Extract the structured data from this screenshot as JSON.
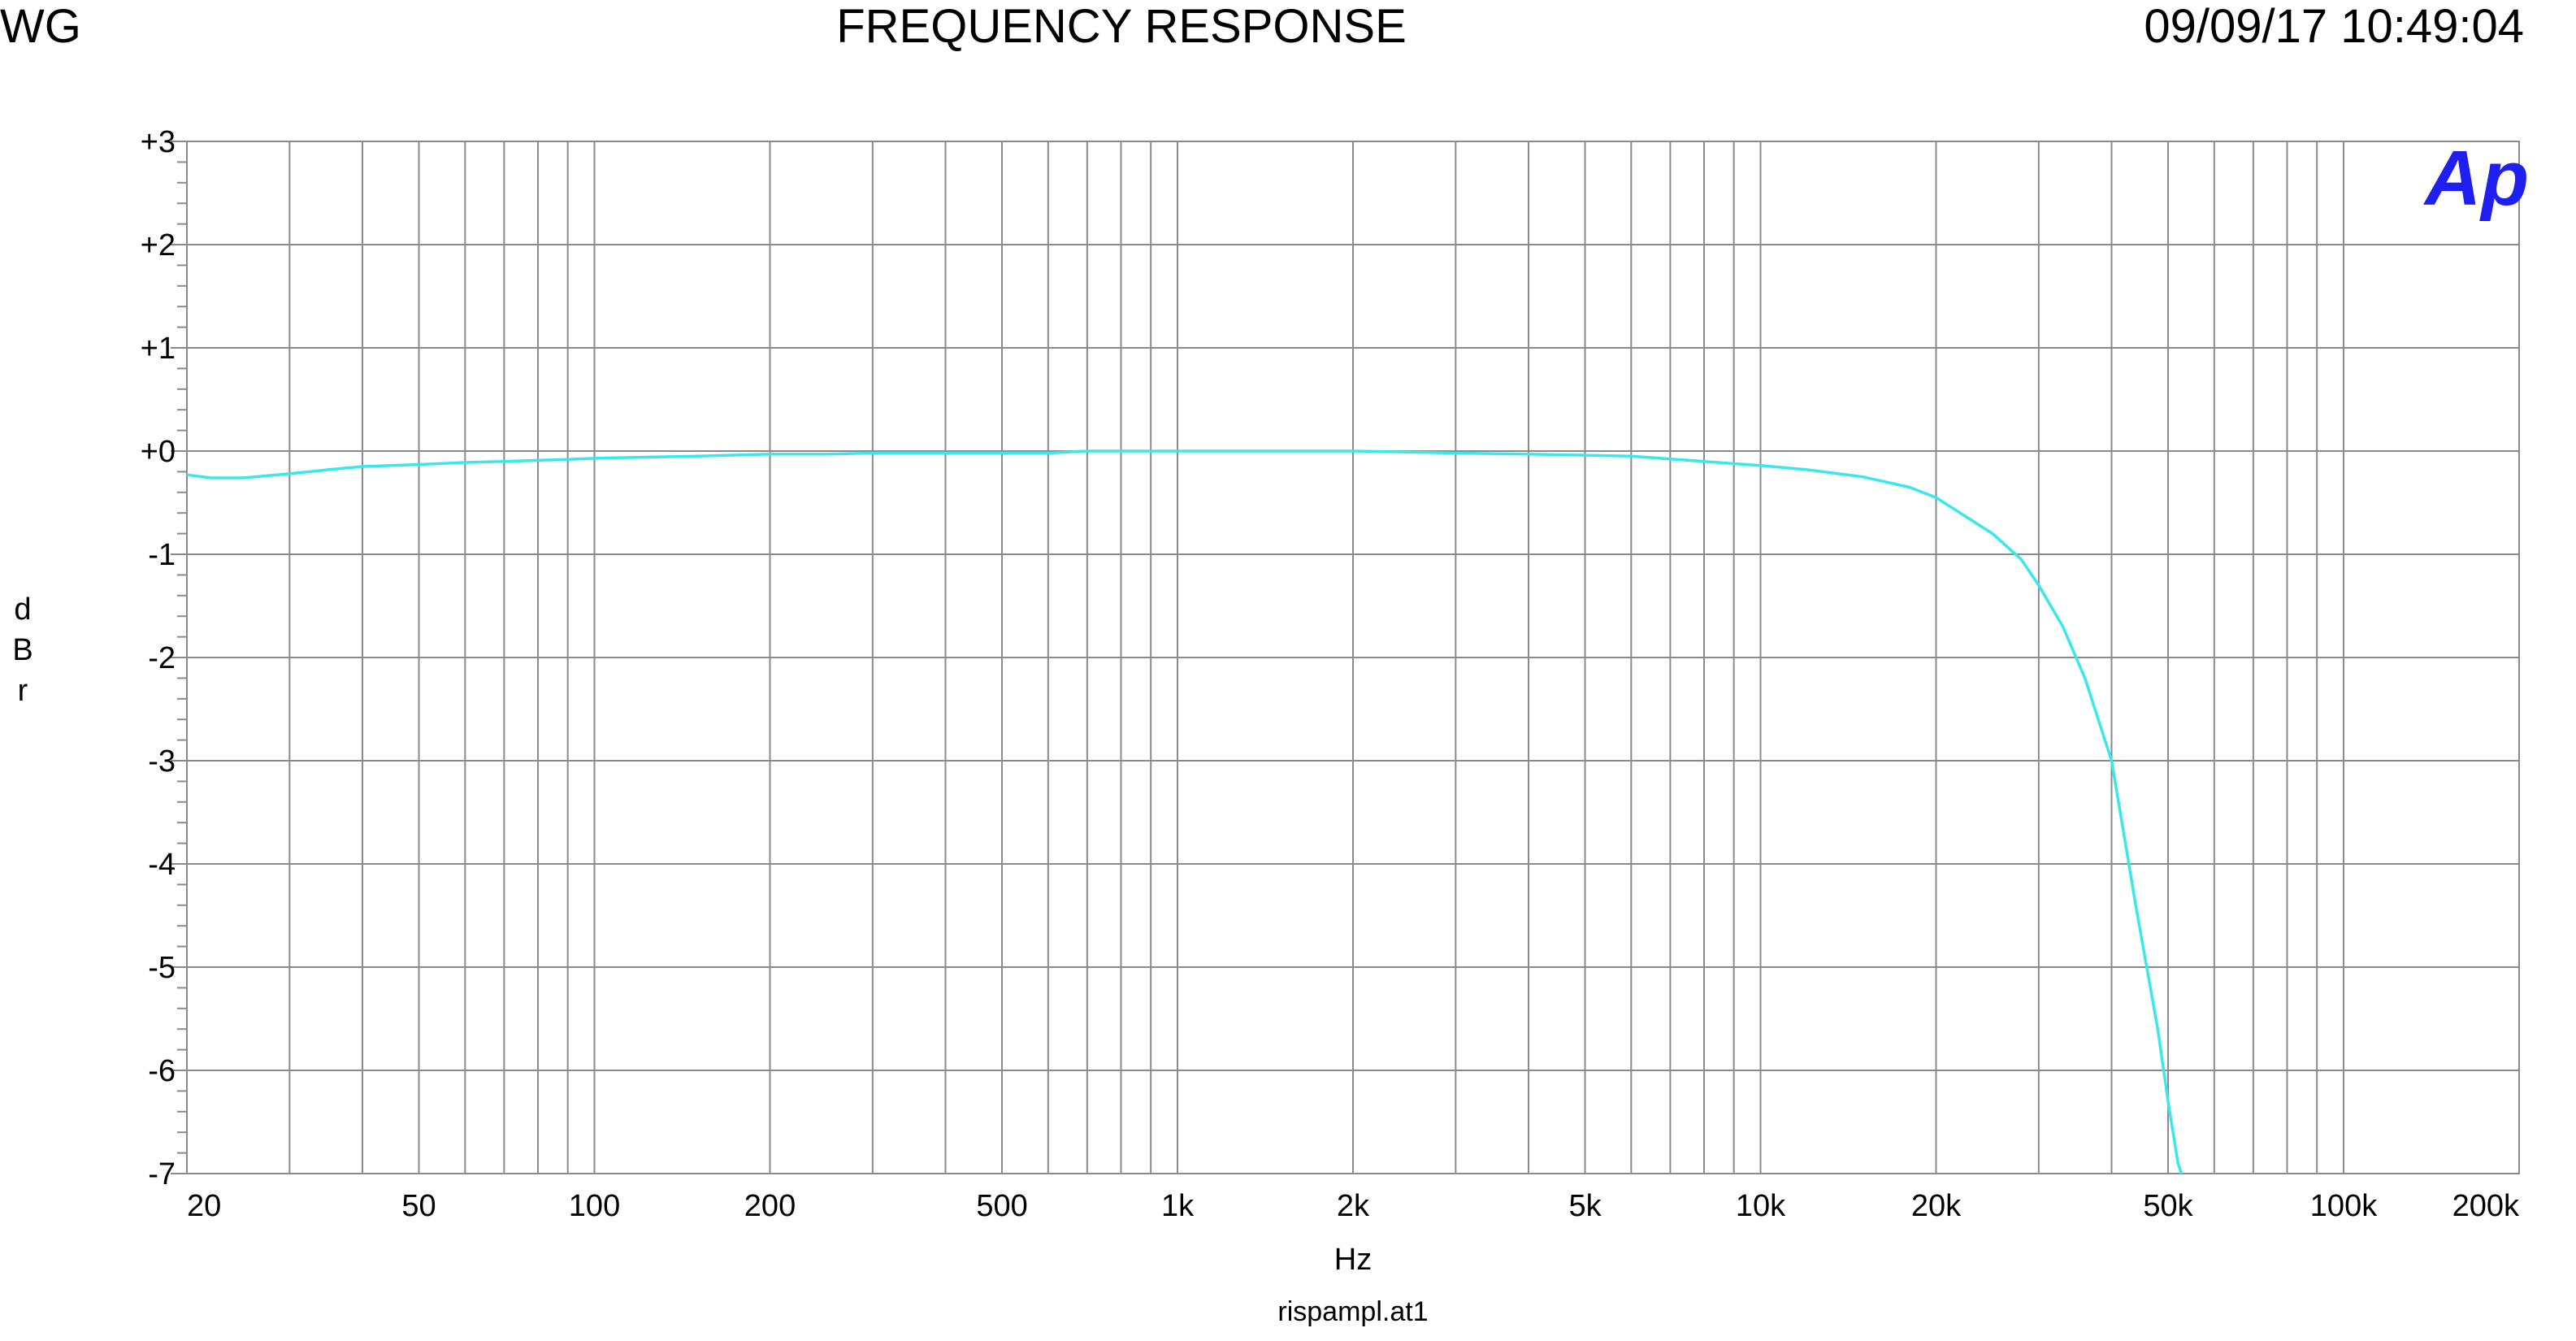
{
  "header": {
    "left": "WG",
    "title": "FREQUENCY RESPONSE",
    "timestamp": "09/09/17 10:49:04"
  },
  "logo": "Ap",
  "file_name": "rispampl.at1",
  "colors": {
    "trace": "#3ae8ec",
    "grid": "#8a8a8a",
    "logo": "#1f1ff0"
  },
  "chart_data": {
    "type": "line",
    "title": "FREQUENCY RESPONSE",
    "xlabel": "Hz",
    "ylabel": "dBr",
    "xscale": "log",
    "xlim": [
      20,
      200000
    ],
    "ylim": [
      -7,
      3
    ],
    "grid": true,
    "x_tick_labels": [
      "20",
      "50",
      "100",
      "200",
      "500",
      "1k",
      "2k",
      "5k",
      "10k",
      "20k",
      "50k",
      "100k",
      "200k"
    ],
    "y_tick_labels": [
      "+3",
      "+2",
      "+1",
      "+0",
      "-1",
      "-2",
      "-3",
      "-4",
      "-5",
      "-6",
      "-7"
    ],
    "series": [
      {
        "x": [
          20,
          22,
          25,
          30,
          35,
          40,
          45,
          50,
          55,
          60,
          70,
          80,
          90,
          100,
          120,
          150,
          200,
          250,
          300,
          400,
          500,
          600,
          700,
          1000,
          1500,
          2000,
          2500,
          3000,
          4000,
          5000,
          6000,
          8000,
          10000,
          12000,
          15000,
          18000,
          20000,
          22000,
          25000,
          28000,
          30000,
          33000,
          36000,
          40000,
          44000,
          48000,
          50000,
          52000,
          55000
        ],
        "y": [
          -0.23,
          -0.26,
          -0.26,
          -0.22,
          -0.18,
          -0.15,
          -0.14,
          -0.13,
          -0.12,
          -0.11,
          -0.1,
          -0.09,
          -0.08,
          -0.07,
          -0.06,
          -0.05,
          -0.03,
          -0.03,
          -0.02,
          -0.02,
          -0.02,
          -0.02,
          0.0,
          0.0,
          0.0,
          0.0,
          -0.01,
          -0.02,
          -0.03,
          -0.04,
          -0.05,
          -0.1,
          -0.14,
          -0.18,
          -0.25,
          -0.35,
          -0.45,
          -0.6,
          -0.8,
          -1.05,
          -1.3,
          -1.7,
          -2.2,
          -3.0,
          -4.4,
          -5.6,
          -6.3,
          -6.9,
          -7.3
        ]
      }
    ]
  }
}
